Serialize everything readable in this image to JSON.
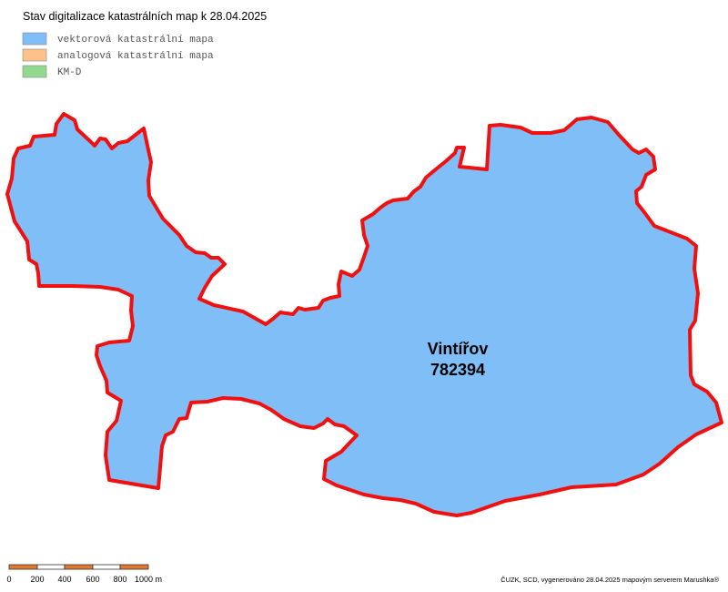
{
  "title": "Stav digitalizace katastrálních map k 28.04.2025",
  "legend": [
    {
      "label": "vektorová katastrální mapa",
      "color": "#80bef8"
    },
    {
      "label": "analogová katastrální mapa",
      "color": "#ffc08a"
    },
    {
      "label": "KM-D",
      "color": "#92d88e"
    }
  ],
  "area": {
    "name": "Vintířov",
    "code": "782394"
  },
  "scale_bar": {
    "labels": [
      "0",
      "200",
      "400",
      "600",
      "800",
      "1000 m"
    ]
  },
  "credit": "ČUZK, SCD, vygenerováno 28.04.2025 mapovým serverem Marushka®"
}
